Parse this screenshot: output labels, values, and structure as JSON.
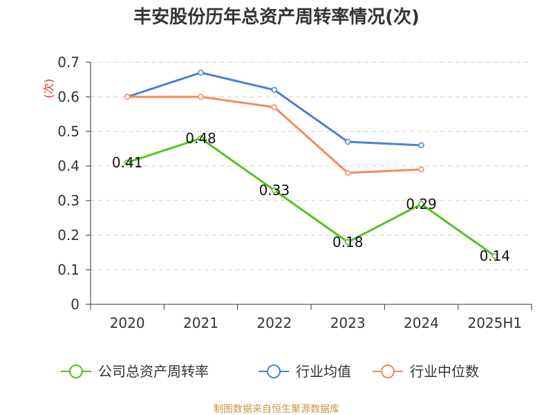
{
  "chart_data": {
    "type": "line",
    "title": "丰安股份历年总资产周转率情况(次)",
    "ylabel": "(次)",
    "xlabel": "",
    "categories": [
      "2020",
      "2021",
      "2022",
      "2023",
      "2024",
      "2025H1"
    ],
    "ylim": [
      0,
      0.7
    ],
    "yticks": [
      0,
      0.1,
      0.2,
      0.3,
      0.4,
      0.5,
      0.6,
      0.7
    ],
    "grid": true,
    "legend_position": "bottom",
    "series": [
      {
        "name": "公司总资产周转率",
        "color": "#52c41a",
        "values": [
          0.41,
          0.48,
          0.33,
          0.18,
          0.29,
          0.14
        ],
        "labels": [
          "0.41",
          "0.48",
          "0.33",
          "0.18",
          "0.29",
          "0.14"
        ]
      },
      {
        "name": "行业均值",
        "color": "#4a7fd6",
        "values": [
          0.6,
          0.67,
          0.62,
          0.47,
          0.46,
          null
        ]
      },
      {
        "name": "行业中位数",
        "color": "#f5895a",
        "values": [
          0.6,
          0.6,
          0.57,
          0.38,
          0.39,
          null
        ]
      }
    ],
    "source": "制图数据来自恒生聚源数据库",
    "colors": {
      "axis": "#333333",
      "grid": "#cccccc",
      "title": "#333333",
      "ylabel": "#e03030",
      "source": "#c8963c"
    }
  }
}
